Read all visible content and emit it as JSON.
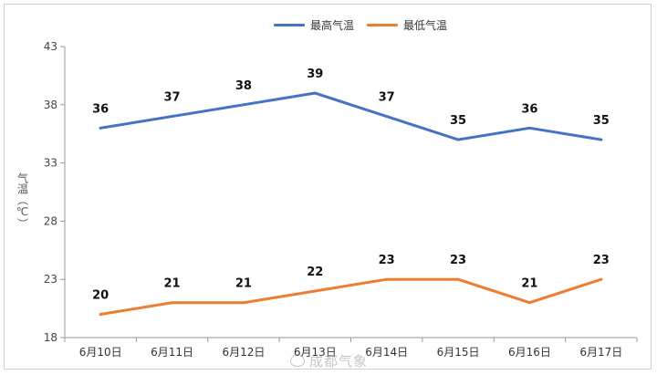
{
  "chart_data": {
    "type": "line",
    "title": "",
    "xlabel": "",
    "ylabel": "气温（℃）",
    "ylim": [
      18,
      43
    ],
    "yticks": [
      18,
      23,
      28,
      33,
      38,
      43
    ],
    "categories": [
      "6月10日",
      "6月11日",
      "6月12日",
      "6月13日",
      "6月14日",
      "6月15日",
      "6月16日",
      "6月17日"
    ],
    "series": [
      {
        "name": "最高气温",
        "color": "#4472c4",
        "values": [
          36,
          37,
          38,
          39,
          37,
          35,
          36,
          35
        ]
      },
      {
        "name": "最低气温",
        "color": "#ed7d31",
        "values": [
          20,
          21,
          21,
          22,
          23,
          23,
          21,
          23
        ]
      }
    ],
    "legend_position": "top-center",
    "grid": false
  },
  "watermark": "成都气象"
}
